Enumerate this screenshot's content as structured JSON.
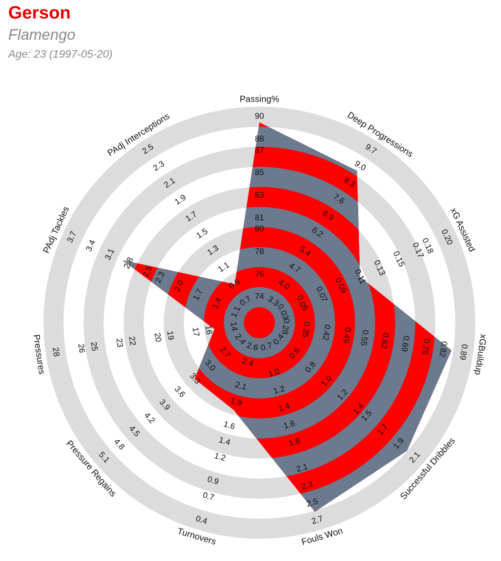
{
  "chart_data": {
    "type": "radar",
    "title": "Gerson",
    "subtitle": "Flamengo",
    "annotation": "Age: 23 (1997-05-20)",
    "axes": [
      {
        "label": "Passing%",
        "ticks": [
          74,
          76,
          78,
          80,
          81,
          83,
          85,
          87,
          88,
          90
        ],
        "lim": [
          72.2,
          90
        ]
      },
      {
        "label": "Deep Progressions",
        "ticks": [
          3.3,
          {
            "value": 4,
            "label": "4.0"
          },
          4.7,
          5.4,
          6.2,
          6.9,
          7.6,
          8.3,
          {
            "value": 9,
            "label": "9.0"
          },
          9.7
        ],
        "lim": [
          2.6,
          9.7
        ]
      },
      {
        "label": "xG Assisted",
        "ticks": [
          0.03,
          0.05,
          0.07,
          0.09,
          0.11,
          0.13,
          0.15,
          0.17,
          0.18,
          {
            "value": 0.2,
            "label": "0.20"
          }
        ],
        "lim": [
          0.011,
          0.2
        ]
      },
      {
        "label": "xGBuildup",
        "ticks": [
          0.28,
          0.35,
          0.42,
          0.49,
          0.55,
          0.62,
          0.69,
          0.76,
          0.82,
          0.89
        ],
        "lim": [
          0.21,
          0.89
        ]
      },
      {
        "label": "Successful Dribbles",
        "ticks": [
          0.4,
          0.6,
          0.8,
          {
            "value": 1,
            "label": "1.0"
          },
          1.2,
          1.4,
          1.5,
          1.7,
          1.9,
          2.1
        ],
        "lim": [
          0.21,
          2.1
        ]
      },
      {
        "label": "Fouls Won",
        "ticks": [
          0.7,
          {
            "value": 1,
            "label": "1.0"
          },
          1.2,
          1.4,
          1.6,
          1.8,
          2.1,
          2.3,
          2.5,
          2.7
        ],
        "lim": [
          0.48,
          2.7
        ]
      },
      {
        "label": "Turnovers",
        "ticks": [
          2.6,
          2.4,
          2.1,
          1.9,
          1.6,
          1.4,
          1.2,
          0.9,
          0.7,
          0.4
        ],
        "lim": [
          2.84,
          0.4
        ]
      },
      {
        "label": "Pressure Regains",
        "ticks": [
          2.4,
          2.7,
          {
            "value": 3,
            "label": "3.0"
          },
          3.3,
          3.6,
          3.9,
          4.2,
          4.5,
          4.8,
          5.1
        ],
        "lim": [
          2.1,
          5.1
        ]
      },
      {
        "label": "Pressures",
        "ticks": [
          14,
          16,
          17,
          19,
          20,
          22,
          23,
          25,
          26,
          28
        ],
        "lim": [
          12.4,
          28
        ]
      },
      {
        "label": "PAdj Tackles",
        "ticks": [
          1.1,
          1.4,
          1.7,
          {
            "value": 2,
            "label": "2.0"
          },
          2.3,
          2.5,
          2.8,
          3.1,
          3.4,
          3.7
        ],
        "lim": [
          0.81,
          3.7
        ]
      },
      {
        "label": "PAdj Interceptions",
        "ticks": [
          0.7,
          0.9,
          1.1,
          1.3,
          1.5,
          1.7,
          1.9,
          2.1,
          2.3,
          2.5
        ],
        "lim": [
          0.5,
          2.5
        ]
      }
    ],
    "values": [
      89.5,
      8.8,
      0.11,
      0.85,
      2.0,
      2.6,
      1.8,
      3.3,
      15.5,
      2.9,
      0.9
    ],
    "colors": {
      "fill": "#ff0000",
      "stripe": "#6b7a8e",
      "ring": "#dcdcdc"
    }
  }
}
